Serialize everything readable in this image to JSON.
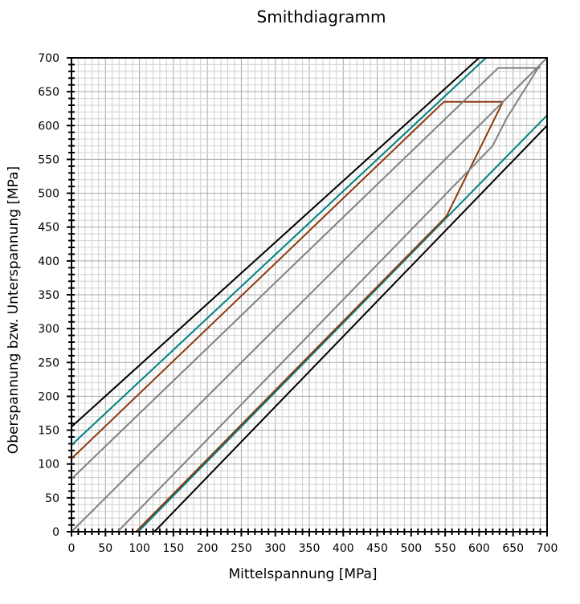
{
  "chart_data": {
    "type": "line",
    "title": "Smithdiagramm",
    "xlabel": "Mittelspannung [MPa]",
    "ylabel": "Oberspannung bzw. Unterspannung [MPa]",
    "xlim": [
      0,
      700
    ],
    "ylim": [
      0,
      700
    ],
    "xticks": [
      "0",
      "50",
      "100",
      "150",
      "200",
      "250",
      "300",
      "350",
      "400",
      "450",
      "500",
      "550",
      "600",
      "650",
      "700"
    ],
    "yticks": [
      "0",
      "50",
      "100",
      "150",
      "200",
      "250",
      "300",
      "350",
      "400",
      "450",
      "500",
      "550",
      "600",
      "650",
      "700"
    ],
    "grid": true,
    "series": [
      {
        "color": "#000000",
        "x": [
          0,
          600
        ],
        "y": [
          155,
          700
        ]
      },
      {
        "color": "#000000",
        "x": [
          122,
          700
        ],
        "y": [
          0,
          600
        ]
      },
      {
        "color": "#008080",
        "x": [
          0,
          610
        ],
        "y": [
          128,
          700
        ]
      },
      {
        "color": "#008080",
        "x": [
          98,
          700
        ],
        "y": [
          0,
          615
        ]
      },
      {
        "color": "#8B3A0F",
        "x": [
          0,
          548,
          635
        ],
        "y": [
          108,
          635,
          635
        ]
      },
      {
        "color": "#8B3A0F",
        "x": [
          95,
          552,
          635
        ],
        "y": [
          0,
          466,
          635
        ]
      },
      {
        "color": "#808080",
        "x": [
          0,
          628,
          690
        ],
        "y": [
          78,
          685,
          685
        ]
      },
      {
        "color": "#808080",
        "x": [
          68,
          620,
          640,
          690
        ],
        "y": [
          0,
          570,
          610,
          690
        ]
      },
      {
        "color": "#808080",
        "x": [
          0,
          700
        ],
        "y": [
          0,
          700
        ]
      }
    ]
  }
}
